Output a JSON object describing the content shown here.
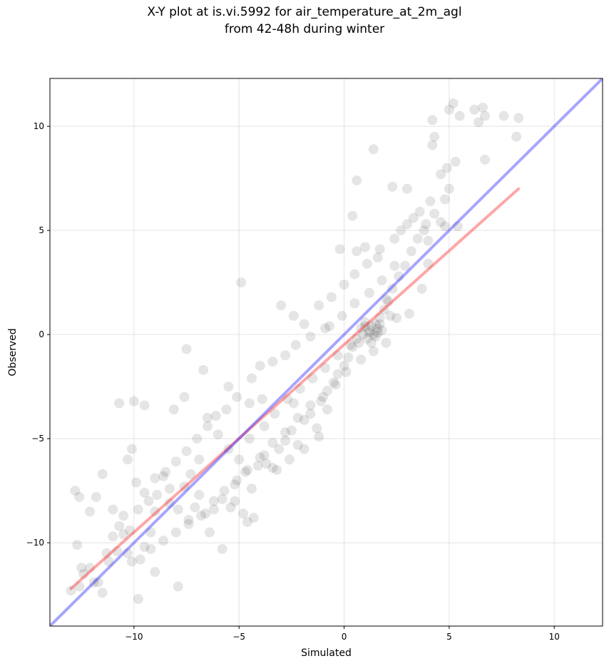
{
  "chart_data": {
    "type": "scatter",
    "title": [
      "X-Y plot at is.vi.5992 for air_temperature_at_2m_agl",
      "from 42-48h during winter"
    ],
    "xlabel": "Simulated",
    "ylabel": "Observed",
    "xlim": [
      -14.0,
      12.3
    ],
    "ylim": [
      -14.0,
      12.3
    ],
    "xticks": [
      -10,
      -5,
      0,
      5,
      10
    ],
    "yticks": [
      -10,
      -5,
      0,
      5,
      10
    ],
    "xtick_labels": [
      "−10",
      "−5",
      "0",
      "5",
      "10"
    ],
    "ytick_labels": [
      "−10",
      "−5",
      "0",
      "5",
      "10"
    ],
    "grid": true,
    "point_color": "#000000",
    "point_opacity": 0.1,
    "points": [
      [
        -13.0,
        -12.3
      ],
      [
        -12.6,
        -12.1
      ],
      [
        -12.5,
        -11.2
      ],
      [
        -12.1,
        -11.2
      ],
      [
        -12.7,
        -10.1
      ],
      [
        -12.8,
        -7.5
      ],
      [
        -12.6,
        -7.8
      ],
      [
        -12.4,
        -11.5
      ],
      [
        -11.7,
        -11.9
      ],
      [
        -11.5,
        -12.4
      ],
      [
        -11.3,
        -10.5
      ],
      [
        -11.0,
        -9.7
      ],
      [
        -10.7,
        -9.2
      ],
      [
        -10.5,
        -9.6
      ],
      [
        -10.3,
        -10.5
      ],
      [
        -10.1,
        -10.9
      ],
      [
        -9.8,
        -12.7
      ],
      [
        -9.5,
        -10.2
      ],
      [
        -9.0,
        -11.4
      ],
      [
        -9.2,
        -9.5
      ],
      [
        -10.3,
        -6.0
      ],
      [
        -10.1,
        -5.5
      ],
      [
        -9.9,
        -7.1
      ],
      [
        -9.3,
        -8.0
      ],
      [
        -8.9,
        -7.7
      ],
      [
        -8.6,
        -6.8
      ],
      [
        -8.3,
        -7.4
      ],
      [
        -7.9,
        -8.4
      ],
      [
        -7.6,
        -7.3
      ],
      [
        -7.4,
        -8.9
      ],
      [
        -7.1,
        -8.3
      ],
      [
        -6.9,
        -7.7
      ],
      [
        -6.6,
        -8.6
      ],
      [
        -6.2,
        -8.0
      ],
      [
        -5.8,
        -7.9
      ],
      [
        -5.4,
        -8.3
      ],
      [
        -5.1,
        -7.0
      ],
      [
        -4.7,
        -6.6
      ],
      [
        -4.4,
        -7.4
      ],
      [
        -4.1,
        -6.3
      ],
      [
        -3.8,
        -5.8
      ],
      [
        -3.4,
        -6.4
      ],
      [
        -3.1,
        -5.5
      ],
      [
        -2.8,
        -5.1
      ],
      [
        -2.5,
        -4.6
      ],
      [
        -2.2,
        -5.3
      ],
      [
        -1.9,
        -4.1
      ],
      [
        -1.6,
        -3.8
      ],
      [
        -1.3,
        -4.5
      ],
      [
        -1.1,
        -3.2
      ],
      [
        -0.8,
        -2.7
      ],
      [
        -0.5,
        -2.3
      ],
      [
        -0.3,
        -1.9
      ],
      [
        0.0,
        -1.5
      ],
      [
        0.2,
        -1.1
      ],
      [
        0.4,
        -0.6
      ],
      [
        0.6,
        -0.2
      ],
      [
        0.8,
        0.3
      ],
      [
        1.0,
        0.6
      ],
      [
        1.2,
        0.2
      ],
      [
        1.3,
        -0.4
      ],
      [
        1.5,
        0.5
      ],
      [
        1.6,
        0.1
      ],
      [
        1.7,
        0.8
      ],
      [
        1.9,
        1.2
      ],
      [
        2.1,
        1.6
      ],
      [
        2.3,
        2.2
      ],
      [
        2.6,
        2.8
      ],
      [
        2.9,
        3.3
      ],
      [
        3.2,
        4.0
      ],
      [
        3.5,
        4.6
      ],
      [
        3.9,
        5.3
      ],
      [
        4.3,
        5.8
      ],
      [
        4.8,
        6.5
      ],
      [
        5.0,
        7.0
      ],
      [
        3.0,
        7.0
      ],
      [
        2.3,
        7.1
      ],
      [
        1.4,
        8.9
      ],
      [
        0.6,
        7.4
      ],
      [
        0.4,
        5.7
      ],
      [
        -0.2,
        4.1
      ],
      [
        -4.9,
        2.5
      ],
      [
        -4.5,
        -3.3
      ],
      [
        -5.1,
        -3.0
      ],
      [
        -5.6,
        -3.6
      ],
      [
        -6.1,
        -3.9
      ],
      [
        -6.5,
        -4.4
      ],
      [
        -7.0,
        -5.0
      ],
      [
        -7.5,
        -5.6
      ],
      [
        -8.0,
        -6.1
      ],
      [
        -8.5,
        -6.6
      ],
      [
        -9.0,
        -6.9
      ],
      [
        -9.5,
        -7.6
      ],
      [
        -9.8,
        -8.4
      ],
      [
        -10.5,
        -8.7
      ],
      [
        -11.0,
        -8.4
      ],
      [
        -11.5,
        -6.7
      ],
      [
        -11.8,
        -7.8
      ],
      [
        -12.1,
        -8.5
      ],
      [
        -10.7,
        -3.3
      ],
      [
        -10.0,
        -3.2
      ],
      [
        -9.5,
        -3.4
      ],
      [
        -8.1,
        -3.6
      ],
      [
        -7.6,
        -3.0
      ],
      [
        -7.5,
        -0.7
      ],
      [
        -6.7,
        -1.7
      ],
      [
        -5.5,
        -2.5
      ],
      [
        -4.4,
        -2.1
      ],
      [
        -4.0,
        -1.5
      ],
      [
        -3.4,
        -1.3
      ],
      [
        -2.8,
        -1.0
      ],
      [
        -2.3,
        -0.5
      ],
      [
        -1.6,
        -0.1
      ],
      [
        -0.9,
        0.3
      ],
      [
        -1.9,
        0.5
      ],
      [
        -2.4,
        0.9
      ],
      [
        -3.0,
        1.4
      ],
      [
        -1.2,
        1.4
      ],
      [
        -0.6,
        1.8
      ],
      [
        0.0,
        2.4
      ],
      [
        0.5,
        2.9
      ],
      [
        1.1,
        3.4
      ],
      [
        1.7,
        4.1
      ],
      [
        2.4,
        4.6
      ],
      [
        3.0,
        5.3
      ],
      [
        3.6,
        5.9
      ],
      [
        4.1,
        6.4
      ],
      [
        4.6,
        7.7
      ],
      [
        4.9,
        8.0
      ],
      [
        5.3,
        8.3
      ],
      [
        4.3,
        9.5
      ],
      [
        4.2,
        10.3
      ],
      [
        4.2,
        9.1
      ],
      [
        5.0,
        10.8
      ],
      [
        5.2,
        11.1
      ],
      [
        5.5,
        10.5
      ],
      [
        6.2,
        10.8
      ],
      [
        6.6,
        10.9
      ],
      [
        6.7,
        10.5
      ],
      [
        7.6,
        10.5
      ],
      [
        8.3,
        10.4
      ],
      [
        6.4,
        10.2
      ],
      [
        8.2,
        9.5
      ],
      [
        6.7,
        8.4
      ],
      [
        5.4,
        5.2
      ],
      [
        4.0,
        3.4
      ],
      [
        3.7,
        2.2
      ],
      [
        3.1,
        1.0
      ],
      [
        2.5,
        0.8
      ],
      [
        2.0,
        -0.4
      ],
      [
        1.4,
        -0.8
      ],
      [
        0.8,
        -1.2
      ],
      [
        0.1,
        -1.8
      ],
      [
        -0.4,
        -2.4
      ],
      [
        -1.0,
        -3.0
      ],
      [
        -1.6,
        -3.4
      ],
      [
        -2.2,
        -4.0
      ],
      [
        -2.8,
        -4.7
      ],
      [
        -3.4,
        -5.2
      ],
      [
        -4.0,
        -5.9
      ],
      [
        -4.6,
        -6.5
      ],
      [
        -5.2,
        -7.2
      ],
      [
        -5.7,
        -7.5
      ],
      [
        -6.2,
        -8.4
      ],
      [
        -6.8,
        -8.7
      ],
      [
        -7.4,
        -9.1
      ],
      [
        -8.0,
        -9.5
      ],
      [
        -8.6,
        -9.9
      ],
      [
        -9.2,
        -10.3
      ],
      [
        -9.7,
        -10.8
      ],
      [
        -6.4,
        -9.5
      ],
      [
        -5.8,
        -10.3
      ],
      [
        -7.9,
        -12.1
      ],
      [
        -4.8,
        -8.6
      ],
      [
        -4.3,
        -8.8
      ],
      [
        -4.6,
        -9.0
      ],
      [
        -5.2,
        -8.0
      ],
      [
        -6.5,
        -4.0
      ],
      [
        -6.0,
        -4.8
      ],
      [
        -5.5,
        -5.5
      ],
      [
        -5.0,
        -6.0
      ],
      [
        -4.5,
        -5.0
      ],
      [
        -3.8,
        -4.4
      ],
      [
        -3.3,
        -3.8
      ],
      [
        -2.7,
        -3.1
      ],
      [
        -2.1,
        -2.6
      ],
      [
        -1.5,
        -2.1
      ],
      [
        -0.9,
        -1.6
      ],
      [
        -0.3,
        -1.0
      ],
      [
        0.3,
        -0.5
      ],
      [
        0.9,
        0.0
      ],
      [
        1.3,
        0.4
      ],
      [
        1.6,
        0.3
      ],
      [
        1.4,
        0.0
      ],
      [
        1.2,
        0.1
      ],
      [
        1.7,
        0.5
      ],
      [
        1.8,
        0.2
      ],
      [
        1.1,
        -0.2
      ],
      [
        1.5,
        -0.1
      ],
      [
        1.0,
        0.4
      ],
      [
        0.7,
        -0.4
      ],
      [
        2.2,
        0.9
      ],
      [
        2.0,
        1.7
      ],
      [
        -0.8,
        -3.6
      ],
      [
        -1.2,
        -4.9
      ],
      [
        -1.9,
        -5.5
      ],
      [
        -2.6,
        -6.0
      ],
      [
        -3.2,
        -6.5
      ],
      [
        -3.7,
        -6.2
      ],
      [
        -2.4,
        -3.3
      ],
      [
        -3.9,
        -3.1
      ],
      [
        -6.9,
        -6.0
      ],
      [
        -7.3,
        -6.7
      ],
      [
        -8.3,
        -8.1
      ],
      [
        -9.0,
        -8.5
      ],
      [
        -10.2,
        -9.4
      ],
      [
        -10.8,
        -10.4
      ],
      [
        -11.2,
        -10.9
      ],
      [
        -11.9,
        -11.9
      ],
      [
        0.6,
        4.0
      ],
      [
        1.0,
        4.2
      ],
      [
        1.6,
        3.7
      ],
      [
        2.7,
        5.0
      ],
      [
        3.3,
        5.6
      ],
      [
        3.8,
        5.0
      ],
      [
        4.6,
        5.4
      ],
      [
        4.8,
        5.2
      ],
      [
        4.0,
        4.5
      ],
      [
        2.4,
        3.3
      ],
      [
        1.8,
        2.6
      ],
      [
        1.2,
        2.0
      ],
      [
        0.5,
        1.5
      ],
      [
        -0.1,
        0.9
      ],
      [
        -0.7,
        0.4
      ]
    ],
    "series": [
      {
        "name": "",
        "type": "fit-line",
        "color": "#ff0000",
        "opacity": 0.35,
        "x": [
          -13.0,
          8.3
        ],
        "y": [
          -12.2,
          7.0
        ]
      },
      {
        "name": "",
        "type": "identity-line",
        "color": "#0000ff",
        "opacity": 0.35,
        "x": [
          -14.0,
          12.3
        ],
        "y": [
          -14.0,
          12.3
        ]
      }
    ]
  }
}
